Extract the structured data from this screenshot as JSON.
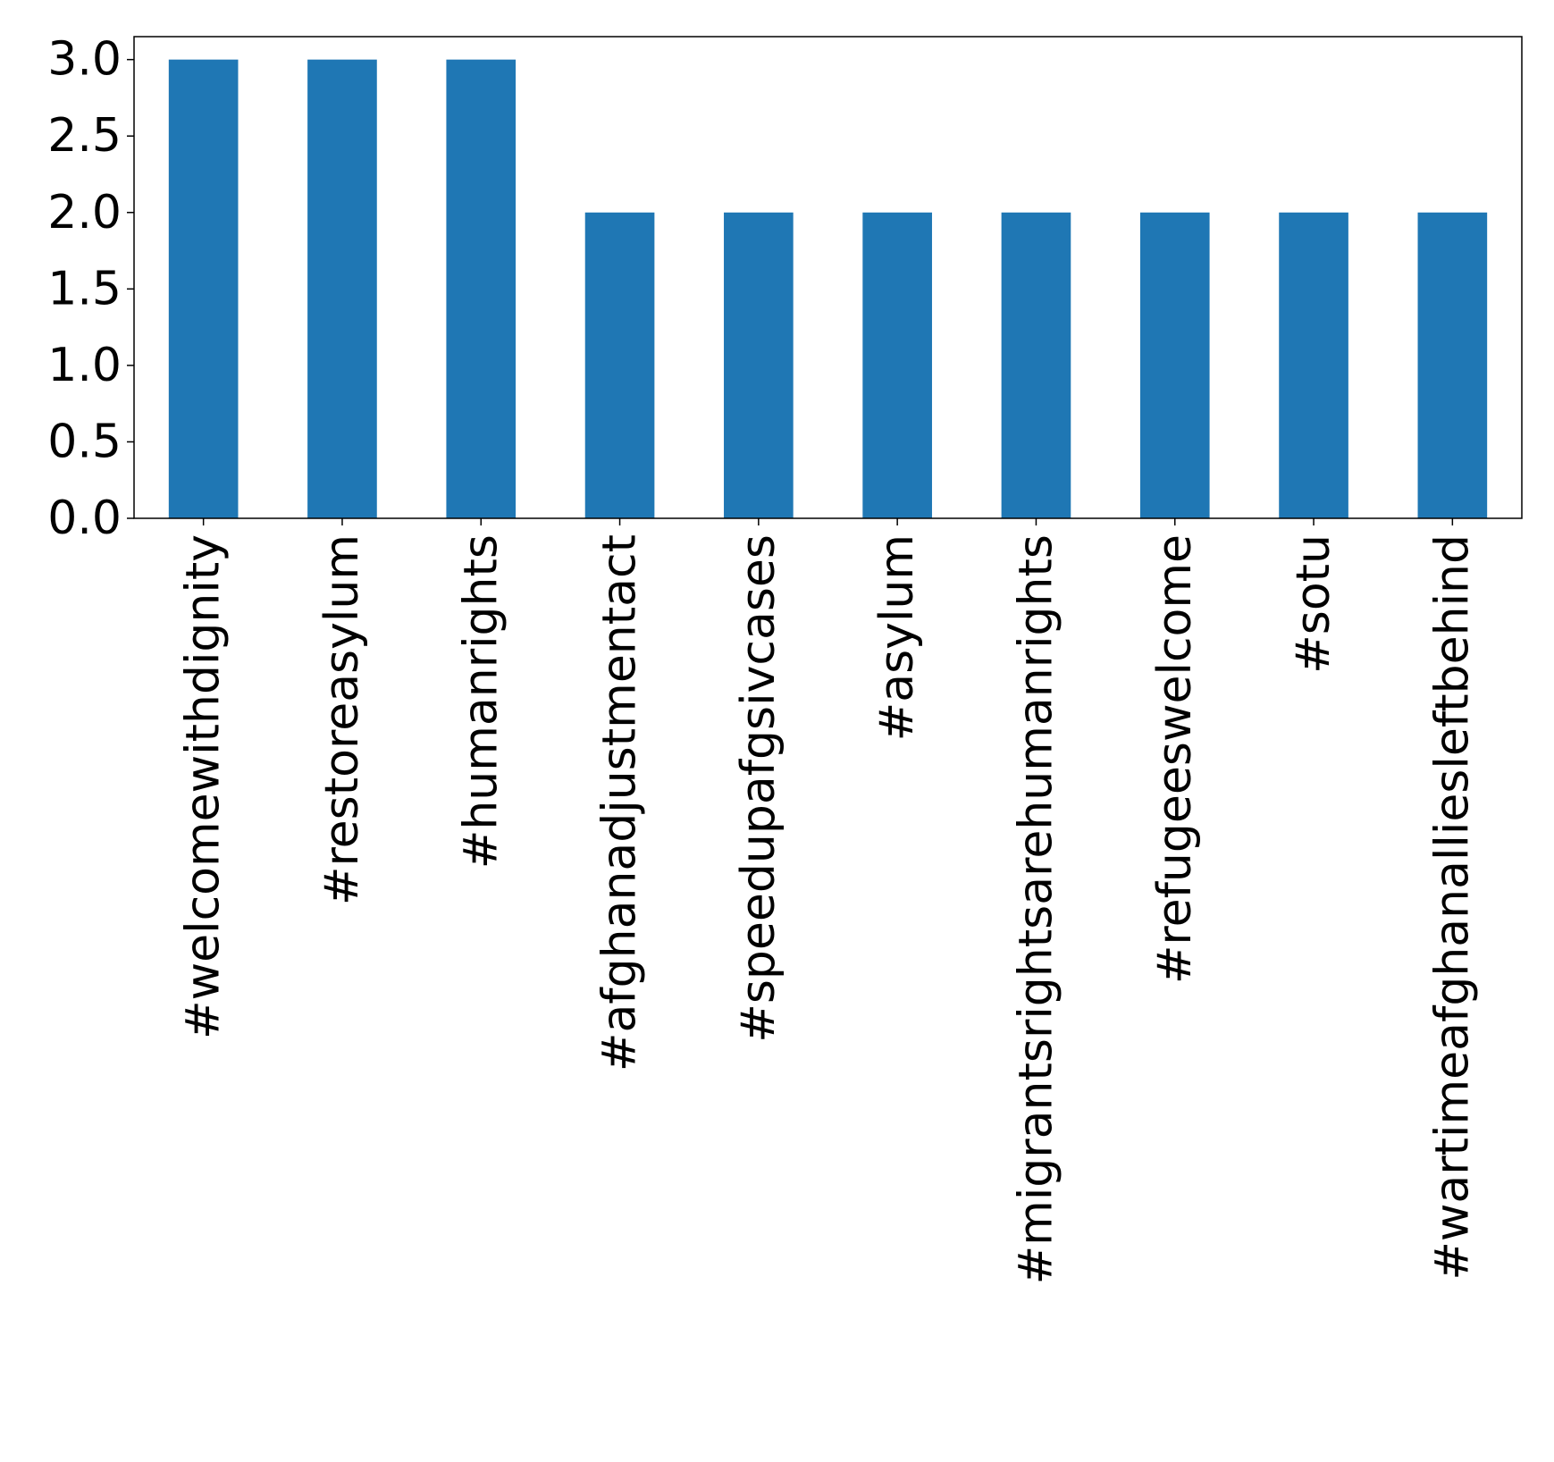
{
  "chart_data": {
    "type": "bar",
    "categories": [
      "#welcomewithdignity",
      "#restoreasylum",
      "#humanrights",
      "#afghanadjustmentact",
      "#speedupafgsivcases",
      "#asylum",
      "#migrantsrightsarehumanrights",
      "#refugeeswelcome",
      "#sotu",
      "#wartimeafghanalliesleftbehind"
    ],
    "values": [
      3,
      3,
      3,
      2,
      2,
      2,
      2,
      2,
      2,
      2
    ],
    "ylim": [
      0,
      3.15
    ],
    "yticks": [
      0.0,
      0.5,
      1.0,
      1.5,
      2.0,
      2.5,
      3.0
    ],
    "ytick_labels": [
      "0.0",
      "0.5",
      "1.0",
      "1.5",
      "2.0",
      "2.5",
      "3.0"
    ],
    "title": "",
    "xlabel": "",
    "ylabel": "",
    "grid": false,
    "bar_color": "#1f77b4"
  }
}
